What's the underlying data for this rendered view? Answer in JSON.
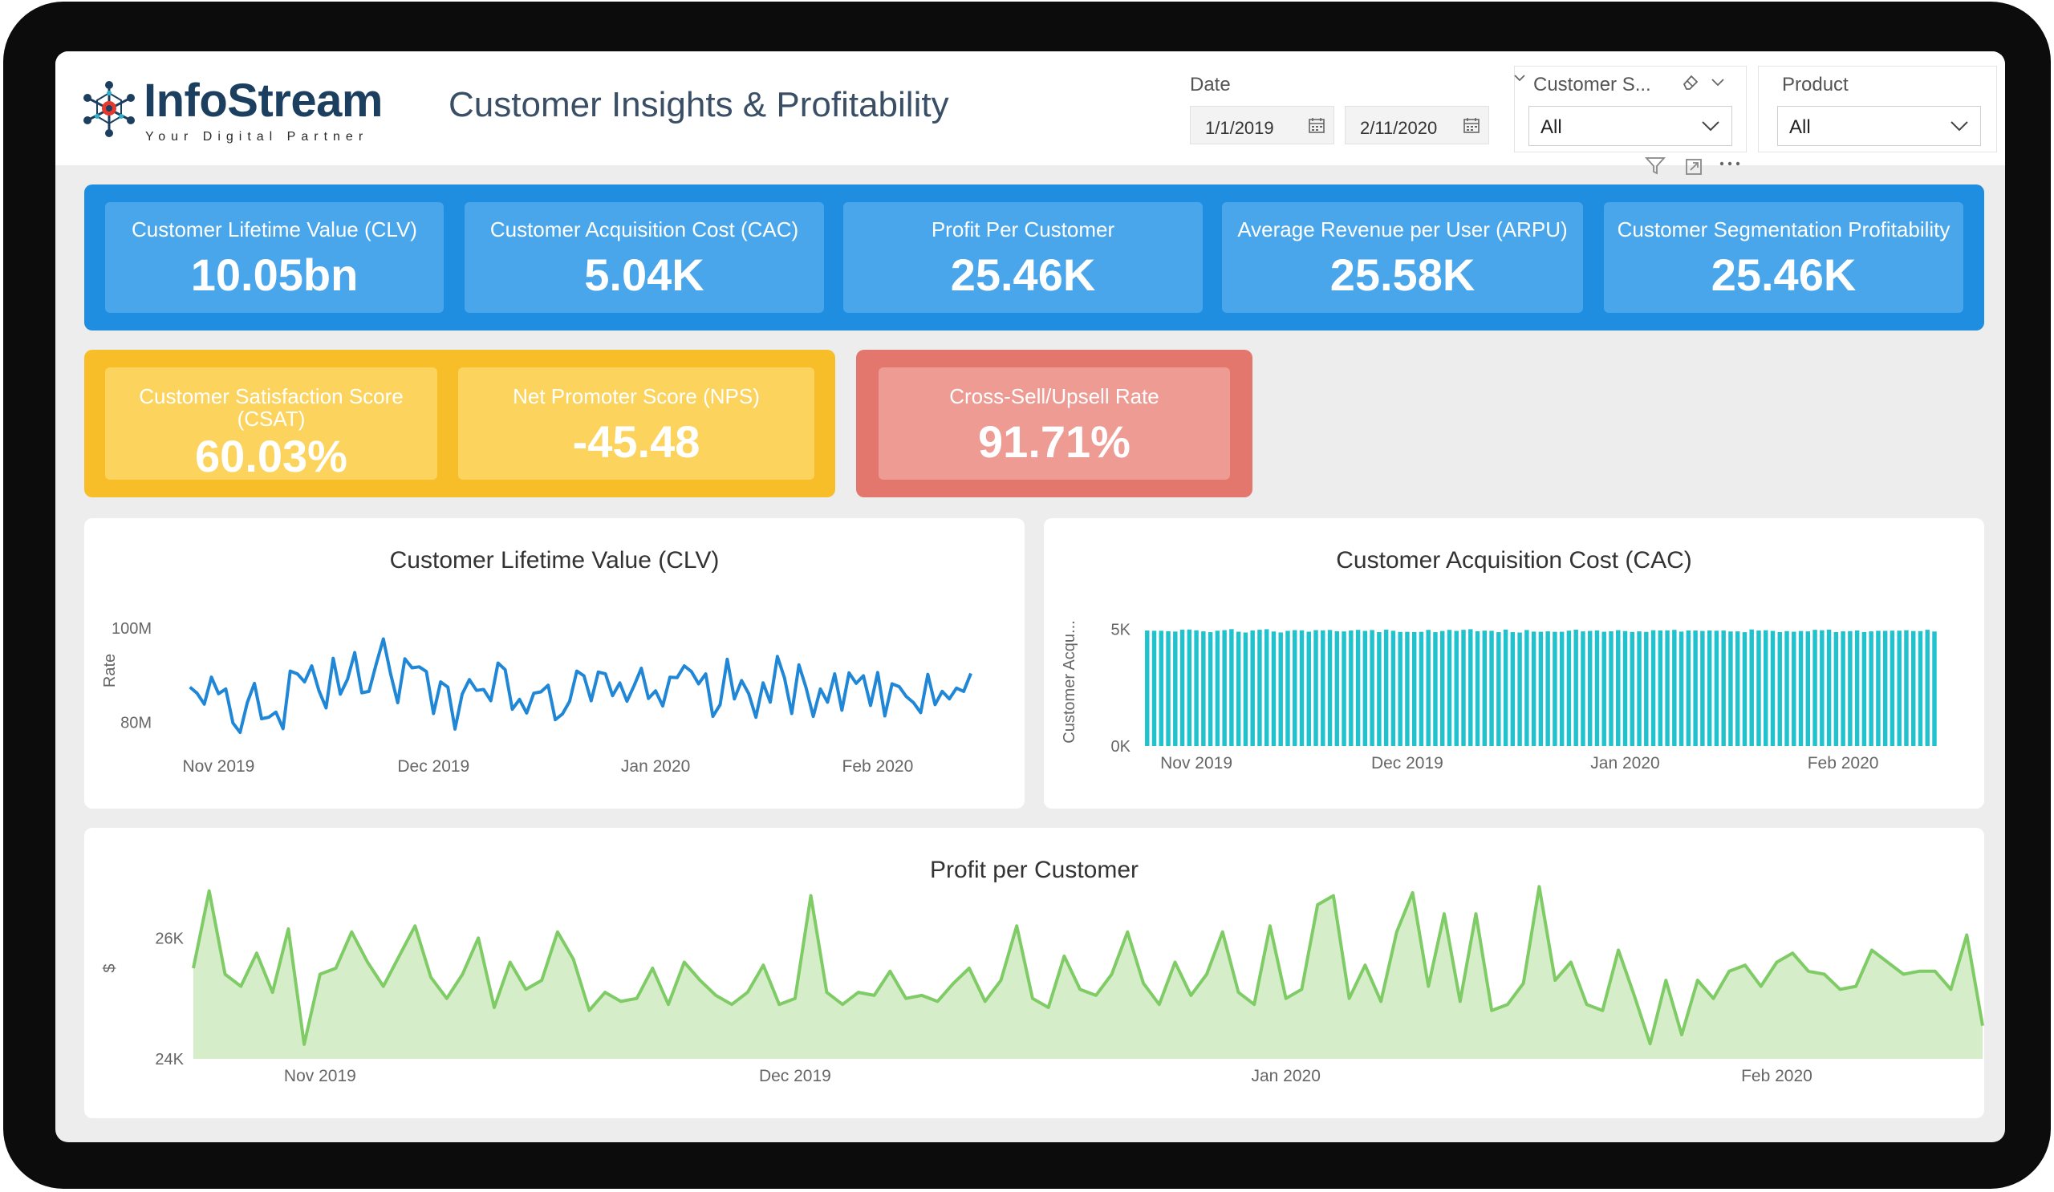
{
  "brand": {
    "name": "InfoStream",
    "tagline": "Your Digital Partner",
    "primary_color": "#1c3f60",
    "accent_color": "#1f8de0"
  },
  "header": {
    "title": "Customer Insights & Profitability"
  },
  "filters": {
    "date": {
      "label": "Date",
      "start": "1/1/2019",
      "end": "2/11/2020"
    },
    "customer_segment": {
      "label": "Customer S...",
      "value": "All"
    },
    "product": {
      "label": "Product",
      "value": "All"
    }
  },
  "kpis_primary": [
    {
      "label": "Customer Lifetime Value (CLV)",
      "value": "10.05bn"
    },
    {
      "label": "Customer Acquisition Cost (CAC)",
      "value": "5.04K"
    },
    {
      "label": "Profit Per Customer",
      "value": "25.46K"
    },
    {
      "label": "Average Revenue per User (ARPU)",
      "value": "25.58K"
    },
    {
      "label": "Customer Segmentation Profitability",
      "value": "25.46K"
    }
  ],
  "kpis_satisfaction": [
    {
      "label": "Customer Satisfaction Score (CSAT)",
      "value": "60.03%"
    },
    {
      "label": "Net Promoter Score (NPS)",
      "value": "-45.48"
    }
  ],
  "kpi_cross_sell": {
    "label": "Cross-Sell/Upsell Rate",
    "value": "91.71%"
  },
  "chart_data": [
    {
      "type": "line",
      "title": "Customer Lifetime Value (CLV)",
      "ylabel": "Rate",
      "xlabel": "",
      "x_range": [
        "2019-10-24",
        "2020-02-14"
      ],
      "ylim": [
        74000000,
        108000000
      ],
      "y_ticks": [
        {
          "value": 80000000,
          "label": "80M"
        },
        {
          "value": 100000000,
          "label": "100M"
        }
      ],
      "x_ticks": [
        {
          "date": "2019-11-01",
          "label": "Nov 2019"
        },
        {
          "date": "2019-12-01",
          "label": "Dec 2019"
        },
        {
          "date": "2020-01-01",
          "label": "Jan 2020"
        },
        {
          "date": "2020-02-01",
          "label": "Feb 2020"
        }
      ],
      "color": "#1f87d6",
      "series": [
        {
          "start_date": "2019-10-28",
          "values": [
            87.5,
            86.2,
            83.9,
            89.6,
            86.1,
            87.1,
            79.9,
            77.9,
            84.2,
            88.3,
            80.8,
            81.1,
            82.2,
            78.7,
            90.9,
            90.3,
            88.6,
            92.0,
            86.8,
            83.1,
            93.6,
            86.0,
            89.2,
            94.8,
            86.3,
            86.6,
            92.4,
            97.7,
            90.4,
            84.2,
            93.5,
            91.6,
            91.8,
            90.8,
            81.9,
            88.6,
            87.5,
            78.6,
            86.0,
            89.1,
            86.8,
            87.0,
            84.6,
            92.6,
            91.2,
            82.8,
            84.9,
            82.0,
            86.2,
            86.5,
            87.9,
            80.6,
            81.8,
            84.5,
            90.9,
            89.9,
            84.6,
            90.7,
            90.3,
            85.7,
            88.4,
            84.5,
            87.8,
            91.5,
            85.1,
            86.7,
            83.5,
            89.6,
            89.5,
            92.0,
            90.8,
            88.2,
            90.3,
            81.3,
            83.8,
            93.4,
            85.0,
            88.9,
            86.1,
            81.1,
            88.4,
            84.3,
            94.0,
            89.4,
            81.9,
            92.2,
            87.4,
            81.3,
            87.1,
            84.3,
            90.3,
            82.6,
            90.5,
            88.3,
            89.9,
            83.6,
            90.6,
            81.4,
            88.2,
            87.6,
            85.5,
            84.2,
            82.1,
            90.2,
            83.8,
            86.6,
            85.0,
            87.3,
            86.6,
            90.4
          ]
        }
      ]
    },
    {
      "type": "bar",
      "title": "Customer Acquisition Cost (CAC)",
      "ylabel": "Customer Acqu...",
      "xlabel": "",
      "x_range": [
        "2019-10-24",
        "2020-02-14"
      ],
      "ylim": [
        0,
        5500
      ],
      "y_ticks": [
        {
          "value": 0,
          "label": "0K"
        },
        {
          "value": 5000,
          "label": "5K"
        }
      ],
      "x_ticks": [
        {
          "date": "2019-11-01",
          "label": "Nov 2019"
        },
        {
          "date": "2019-12-01",
          "label": "Dec 2019"
        },
        {
          "date": "2020-01-01",
          "label": "Jan 2020"
        },
        {
          "date": "2020-02-01",
          "label": "Feb 2020"
        }
      ],
      "color": "#20c2cd",
      "series": [
        {
          "start_date": "2019-10-25",
          "values": [
            4950,
            4938,
            4939,
            4918,
            4903,
            4983,
            4991,
            4958,
            4913,
            4879,
            4940,
            4965,
            5008,
            4898,
            4864,
            4952,
            4981,
            5004,
            4907,
            4867,
            4935,
            4966,
            4957,
            4898,
            4966,
            4956,
            4973,
            4917,
            4909,
            4950,
            4977,
            4932,
            4969,
            4880,
            4986,
            4938,
            4889,
            4893,
            4885,
            4892,
            4975,
            4878,
            4928,
            4976,
            4933,
            4980,
            5005,
            4915,
            4944,
            4937,
            4878,
            4989,
            4879,
            4863,
            4971,
            4901,
            4895,
            4913,
            4893,
            4896,
            4943,
            4985,
            4911,
            4932,
            4952,
            4897,
            4915,
            4965,
            4926,
            4889,
            4912,
            4890,
            4961,
            4951,
            4955,
            4976,
            4903,
            4952,
            4950,
            4930,
            4950,
            4941,
            4949,
            4908,
            4912,
            4878,
            4994,
            4948,
            4961,
            4933,
            4884,
            4923,
            4897,
            4927,
            4911,
            4979,
            4961,
            4984,
            4881,
            4913,
            4923,
            4952,
            4884,
            4913,
            4938,
            4935,
            4943,
            4943,
            4962,
            4926,
            4924,
            4980,
            4905
          ]
        }
      ]
    },
    {
      "type": "area",
      "title": "Profit per Customer",
      "ylabel": "$",
      "xlabel": "",
      "x_range": [
        "2019-10-24",
        "2020-02-14"
      ],
      "ylim": [
        24000,
        27000
      ],
      "y_ticks": [
        {
          "value": 24000,
          "label": "24K"
        },
        {
          "value": 26000,
          "label": "26K"
        }
      ],
      "x_ticks": [
        {
          "date": "2019-11-01",
          "label": "Nov 2019"
        },
        {
          "date": "2019-12-01",
          "label": "Dec 2019"
        },
        {
          "date": "2020-01-01",
          "label": "Jan 2020"
        },
        {
          "date": "2020-02-01",
          "label": "Feb 2020"
        }
      ],
      "color": "#7fcc66",
      "fill": "#d6edc9",
      "series": [
        {
          "start_date": "2019-10-24",
          "values": [
            25500,
            26780,
            25400,
            25200,
            25750,
            25100,
            26150,
            24240,
            25400,
            25500,
            26100,
            25600,
            25200,
            25700,
            26200,
            25350,
            25000,
            25400,
            26000,
            24850,
            25600,
            25150,
            25300,
            26100,
            25650,
            24800,
            25100,
            24950,
            25000,
            25500,
            24900,
            25600,
            25300,
            25050,
            24900,
            25100,
            25550,
            24900,
            25000,
            26700,
            25100,
            24900,
            25100,
            25050,
            25450,
            25000,
            25050,
            24950,
            25250,
            25500,
            24950,
            25300,
            26200,
            25000,
            24850,
            25700,
            25150,
            25050,
            25400,
            26100,
            25250,
            24900,
            25600,
            25050,
            25400,
            26100,
            25100,
            24900,
            26200,
            25000,
            25150,
            26550,
            26700,
            25000,
            25550,
            24950,
            26100,
            26750,
            25200,
            26400,
            24950,
            26400,
            24800,
            24900,
            25250,
            26850,
            25300,
            25600,
            24900,
            24800,
            25800,
            25050,
            24250,
            25300,
            24400,
            25300,
            25000,
            25450,
            25550,
            25200,
            25600,
            25750,
            25450,
            25400,
            25150,
            25200,
            25800,
            25600,
            25400,
            25450,
            25450,
            25150,
            26050,
            24550
          ]
        }
      ]
    }
  ]
}
